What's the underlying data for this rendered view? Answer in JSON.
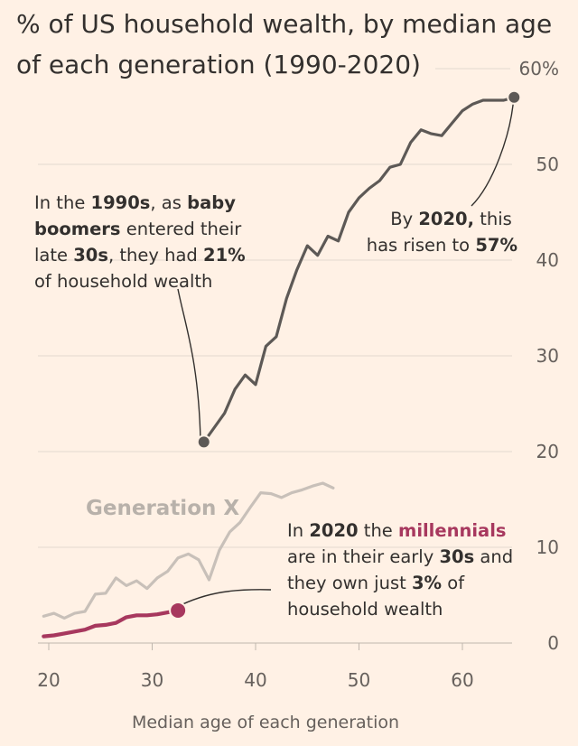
{
  "chart_data": {
    "type": "line",
    "title": "% of US household wealth, by median age of each generation (1990-2020)",
    "title_line1": "% of US household wealth, by median age",
    "title_line2": "of each generation (1990-2020)",
    "xlabel": "Median age of each generation",
    "ylabel": "",
    "xlim": [
      19,
      66
    ],
    "ylim": [
      0,
      60
    ],
    "x_ticks": [
      20,
      30,
      40,
      50,
      60
    ],
    "x_tick_labels": [
      "20",
      "30",
      "40",
      "50",
      "60"
    ],
    "y_ticks": [
      0,
      10,
      20,
      30,
      40,
      50,
      60
    ],
    "y_tick_labels": [
      "0",
      "10",
      "20",
      "30",
      "40",
      "50",
      "60%"
    ],
    "series": [
      {
        "name": "Baby boomers",
        "color": "#5d5956",
        "x": [
          35,
          36,
          37,
          38,
          39,
          40,
          40.5,
          41,
          42,
          43,
          44,
          45,
          46,
          47,
          48,
          49,
          50,
          51,
          52,
          53,
          54,
          55,
          56,
          57,
          58,
          59,
          60,
          61,
          62,
          63,
          64,
          65
        ],
        "values": [
          21,
          22.5,
          24,
          26.5,
          28,
          27,
          29,
          31,
          32,
          36,
          39,
          41.5,
          40.5,
          42.5,
          42,
          45,
          46.5,
          47.5,
          48.3,
          49.7,
          50,
          52.3,
          53.6,
          53.2,
          53,
          54.3,
          55.6,
          56.3,
          56.7,
          56.7,
          56.7,
          57
        ]
      },
      {
        "name": "Generation X",
        "color": "#c8c0b9",
        "x": [
          19.5,
          20.5,
          21.5,
          22.5,
          23.5,
          24.5,
          25.5,
          26.5,
          27.5,
          28.5,
          29.5,
          30.5,
          31.5,
          32.5,
          33.5,
          34.5,
          35.5,
          36.5,
          37.5,
          38.5,
          39.5,
          40.5,
          41.5,
          42.5,
          43.5,
          44.5,
          45.5,
          46.5,
          47.5
        ],
        "values": [
          2.8,
          3.1,
          2.6,
          3.1,
          3.3,
          5.1,
          5.2,
          6.8,
          6.0,
          6.5,
          5.7,
          6.8,
          7.5,
          8.9,
          9.3,
          8.7,
          6.6,
          9.7,
          11.6,
          12.6,
          14.2,
          15.7,
          15.6,
          15.2,
          15.7,
          16.0,
          16.4,
          16.7,
          16.2
        ]
      },
      {
        "name": "Millennials",
        "color": "#a7385e",
        "x": [
          19.5,
          20.5,
          21.5,
          22.5,
          23.5,
          24.5,
          25.5,
          26.5,
          27.5,
          28.5,
          29.5,
          30.5,
          31.5,
          32.5
        ],
        "values": [
          0.7,
          0.8,
          1.0,
          1.2,
          1.4,
          1.8,
          1.9,
          2.1,
          2.7,
          2.9,
          2.9,
          3.0,
          3.2,
          3.4
        ]
      }
    ],
    "annotations": {
      "boomers_1990": {
        "line1": [
          "In the ",
          "1990s",
          ", as ",
          "baby"
        ],
        "line2": [
          "boomers",
          " entered their"
        ],
        "line3": [
          "late ",
          "30s",
          ", they had  ",
          "21%"
        ],
        "line4": [
          "of household wealth"
        ]
      },
      "boomers_2020": {
        "line1": [
          "By ",
          "2020,",
          " this"
        ],
        "line2": [
          "has risen to ",
          "57%"
        ]
      },
      "genx_label": "Generation X",
      "millennials_2020": {
        "line1": [
          "In ",
          "2020",
          " the ",
          "millennials"
        ],
        "line2": [
          "are in their early ",
          "30s",
          " and"
        ],
        "line3": [
          "they own just ",
          "3%",
          " of"
        ],
        "line4": [
          "household wealth"
        ]
      }
    }
  }
}
